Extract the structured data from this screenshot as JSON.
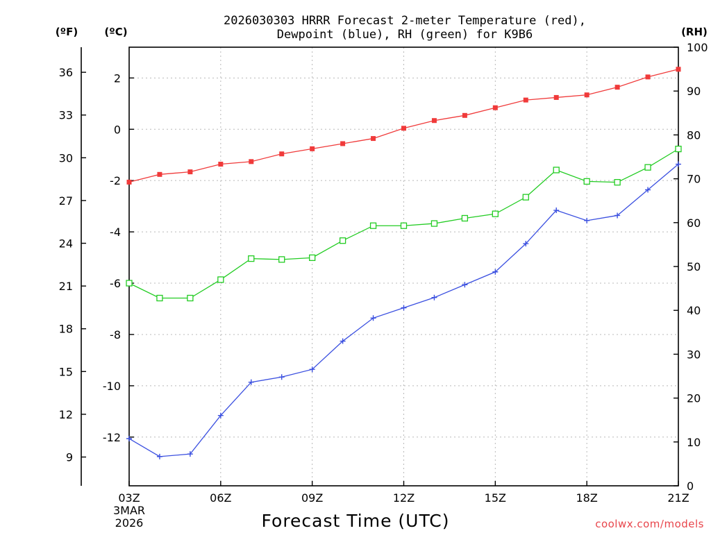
{
  "chart_data": {
    "type": "line",
    "title_lines": [
      "2026030303 HRRR Forecast 2-meter Temperature (red),",
      "Dewpoint (blue), RH (green) for K9B6"
    ],
    "xlabel": "Forecast Time (UTC)",
    "x_hours": [
      3,
      4,
      5,
      6,
      7,
      8,
      9,
      10,
      11,
      12,
      13,
      14,
      15,
      16,
      17,
      18,
      19,
      20,
      21
    ],
    "x_ticks": [
      {
        "hour": 3,
        "label": "03Z"
      },
      {
        "hour": 6,
        "label": "06Z"
      },
      {
        "hour": 9,
        "label": "09Z"
      },
      {
        "hour": 12,
        "label": "12Z"
      },
      {
        "hour": 15,
        "label": "15Z"
      },
      {
        "hour": 18,
        "label": "18Z"
      },
      {
        "hour": 21,
        "label": "21Z"
      }
    ],
    "x_date_lines": [
      "3MAR",
      "2026"
    ],
    "axes": {
      "celsius": {
        "unit_label": "(ºC)",
        "range": [
          -13.9,
          3.2
        ],
        "ticks": [
          2,
          0,
          -2,
          -4,
          -6,
          -8,
          -10,
          -12
        ]
      },
      "fahrenheit": {
        "unit_label": "(ºF)",
        "ticks": [
          36,
          33,
          30,
          27,
          24,
          21,
          18,
          15,
          12,
          9
        ]
      },
      "rh": {
        "unit_label": "(RH)",
        "range": [
          0,
          100
        ],
        "ticks": [
          100,
          90,
          80,
          70,
          60,
          50,
          40,
          30,
          20,
          10,
          0
        ]
      }
    },
    "series": [
      {
        "name": "Temperature",
        "axis": "celsius",
        "color": "#f03a3a",
        "marker": "filled-square",
        "values": [
          -2.06,
          -1.76,
          -1.66,
          -1.36,
          -1.26,
          -0.96,
          -0.76,
          -0.56,
          -0.36,
          0.04,
          0.34,
          0.54,
          0.84,
          1.14,
          1.24,
          1.34,
          1.64,
          2.04,
          2.34
        ]
      },
      {
        "name": "Dewpoint",
        "axis": "celsius",
        "color": "#3a4fe0",
        "marker": "plus",
        "values": [
          -12.06,
          -12.76,
          -12.66,
          -11.16,
          -9.86,
          -9.66,
          -9.36,
          -8.26,
          -7.36,
          -6.96,
          -6.56,
          -6.06,
          -5.56,
          -4.46,
          -3.16,
          -3.56,
          -3.36,
          -2.36,
          -1.36
        ]
      },
      {
        "name": "RH",
        "axis": "rh",
        "color": "#22cc22",
        "marker": "open-square",
        "values": [
          46.2,
          42.8,
          42.8,
          47.0,
          51.8,
          51.6,
          52.0,
          55.9,
          59.3,
          59.3,
          59.8,
          61.0,
          62.0,
          65.8,
          72.0,
          69.4,
          69.2,
          72.6,
          76.8
        ]
      }
    ]
  },
  "credit": "coolwx.com/models"
}
